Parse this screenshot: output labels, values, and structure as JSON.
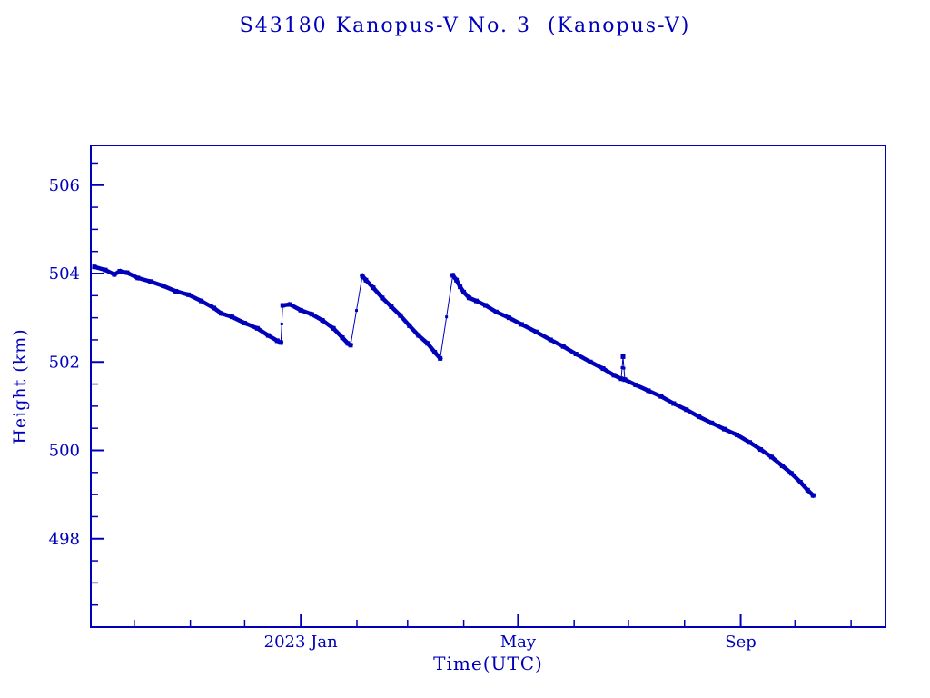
{
  "page": {
    "background": "#ffffff"
  },
  "chart_data": {
    "type": "line",
    "title": "S43180 Kanopus-V No. 3  (Kanopus-V)",
    "xlabel": "Time(UTC)",
    "ylabel": "Height (km)",
    "color": "#0000bb",
    "x_unit": "days since 2023-01-01",
    "xlim": [
      -116,
      323
    ],
    "ylim": [
      496.0,
      506.9
    ],
    "grid": false,
    "legend": "none",
    "y_major_ticks": [
      {
        "value": 498,
        "label": "498"
      },
      {
        "value": 500,
        "label": "500"
      },
      {
        "value": 502,
        "label": "502"
      },
      {
        "value": 504,
        "label": "504"
      },
      {
        "value": 506,
        "label": "506"
      }
    ],
    "y_minor_ticks": [
      496.5,
      497,
      497.5,
      498.5,
      499,
      499.5,
      500.5,
      501,
      501.5,
      502.5,
      503,
      503.5,
      504.5,
      505,
      505.5,
      506.5
    ],
    "x_major_ticks": [
      {
        "value": 0,
        "label": "2023 Jan"
      },
      {
        "value": 120,
        "label": "May"
      },
      {
        "value": 243,
        "label": "Sep"
      }
    ],
    "x_minor_ticks": [
      -92,
      -61,
      -31,
      31,
      59,
      90,
      151,
      181,
      212,
      273,
      304
    ],
    "jump_threshold": 0.3,
    "series": [
      {
        "name": "height",
        "points": [
          [
            -114,
            504.15
          ],
          [
            -108,
            504.08
          ],
          [
            -103,
            503.98
          ],
          [
            -100,
            504.05
          ],
          [
            -96,
            504.02
          ],
          [
            -90,
            503.9
          ],
          [
            -83,
            503.82
          ],
          [
            -76,
            503.72
          ],
          [
            -69,
            503.6
          ],
          [
            -62,
            503.52
          ],
          [
            -55,
            503.38
          ],
          [
            -48,
            503.22
          ],
          [
            -44,
            503.1
          ],
          [
            -38,
            503.02
          ],
          [
            -31,
            502.88
          ],
          [
            -24,
            502.76
          ],
          [
            -18,
            502.6
          ],
          [
            -13,
            502.48
          ],
          [
            -11,
            502.44
          ],
          [
            -10,
            503.28
          ],
          [
            -6,
            503.3
          ],
          [
            0,
            503.17
          ],
          [
            6,
            503.08
          ],
          [
            12,
            502.94
          ],
          [
            18,
            502.76
          ],
          [
            23,
            502.55
          ],
          [
            26,
            502.42
          ],
          [
            27.5,
            502.38
          ],
          [
            34,
            503.95
          ],
          [
            36,
            503.85
          ],
          [
            40,
            503.68
          ],
          [
            45,
            503.45
          ],
          [
            50,
            503.25
          ],
          [
            55,
            503.05
          ],
          [
            60,
            502.82
          ],
          [
            65,
            502.6
          ],
          [
            70,
            502.42
          ],
          [
            74,
            502.22
          ],
          [
            77,
            502.08
          ],
          [
            84,
            503.96
          ],
          [
            86,
            503.85
          ],
          [
            88,
            503.7
          ],
          [
            90,
            503.58
          ],
          [
            93,
            503.45
          ],
          [
            97,
            503.38
          ],
          [
            102,
            503.28
          ],
          [
            108,
            503.13
          ],
          [
            115,
            503.0
          ],
          [
            122,
            502.85
          ],
          [
            130,
            502.68
          ],
          [
            138,
            502.5
          ],
          [
            145,
            502.35
          ],
          [
            152,
            502.18
          ],
          [
            160,
            502.0
          ],
          [
            167,
            501.85
          ],
          [
            173,
            501.7
          ],
          [
            177,
            501.62
          ],
          [
            178,
            502.12
          ],
          [
            179,
            501.6
          ],
          [
            185,
            501.48
          ],
          [
            192,
            501.35
          ],
          [
            199,
            501.22
          ],
          [
            206,
            501.06
          ],
          [
            213,
            500.92
          ],
          [
            220,
            500.76
          ],
          [
            227,
            500.62
          ],
          [
            234,
            500.48
          ],
          [
            241,
            500.35
          ],
          [
            248,
            500.18
          ],
          [
            254,
            500.02
          ],
          [
            260,
            499.85
          ],
          [
            266,
            499.65
          ],
          [
            271,
            499.48
          ],
          [
            276,
            499.28
          ],
          [
            280,
            499.1
          ],
          [
            283,
            498.98
          ]
        ]
      }
    ]
  }
}
